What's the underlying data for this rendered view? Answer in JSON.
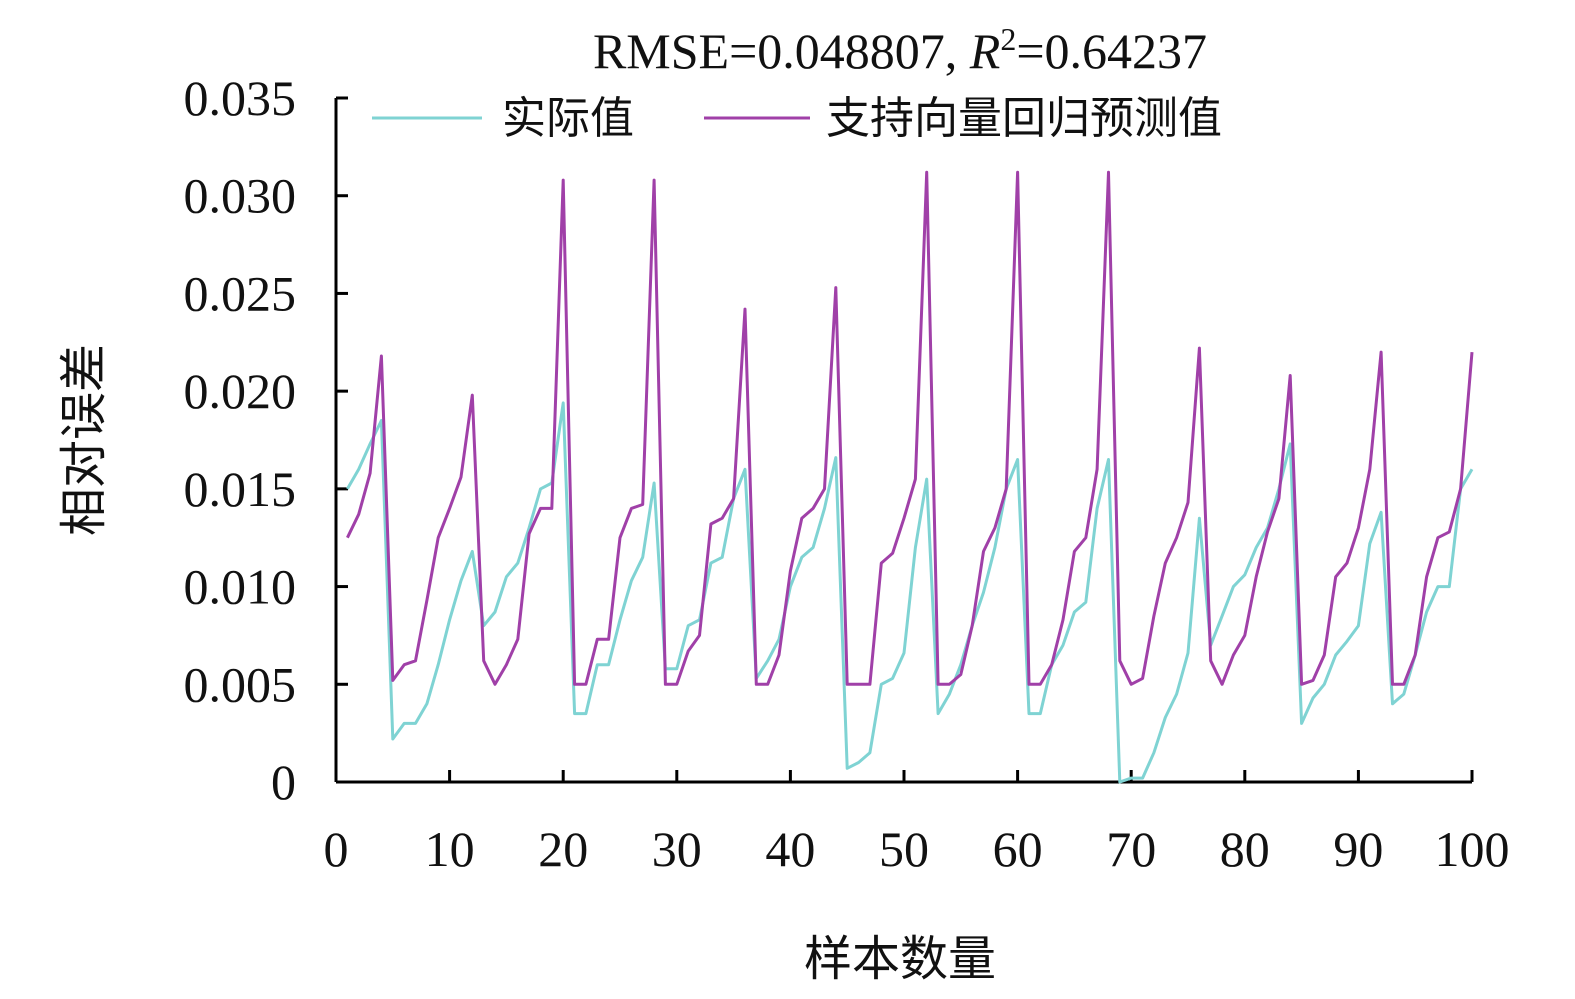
{
  "chart_data": {
    "type": "line",
    "title": "RMSE=0.048807, R²=0.64237",
    "title_parts": {
      "prefix": "RMSE=0.048807, ",
      "r": "R",
      "sup": "2",
      "suffix": "=0.64237"
    },
    "xlabel": "样本数量",
    "ylabel": "相对误差",
    "xlim": [
      0,
      100
    ],
    "ylim": [
      0,
      0.035
    ],
    "x_ticks": [
      0,
      10,
      20,
      30,
      40,
      50,
      60,
      70,
      80,
      90,
      100
    ],
    "x_tick_labels": [
      "0",
      "10",
      "20",
      "30",
      "40",
      "50",
      "60",
      "70",
      "80",
      "90",
      "100"
    ],
    "y_ticks": [
      0,
      0.005,
      0.01,
      0.015,
      0.02,
      0.025,
      0.03,
      0.035
    ],
    "y_tick_labels": [
      "0",
      "0.005",
      "0.010",
      "0.015",
      "0.020",
      "0.025",
      "0.030",
      "0.035"
    ],
    "grid": false,
    "legend_position": "top",
    "series": [
      {
        "name": "实际值",
        "color": "#7fd3d3",
        "values": [
          0.015,
          0.016,
          0.0173,
          0.0185,
          0.0022,
          0.003,
          0.003,
          0.004,
          0.006,
          0.0083,
          0.0103,
          0.0118,
          0.008,
          0.0087,
          0.0105,
          0.0112,
          0.013,
          0.015,
          0.0153,
          0.0194,
          0.0035,
          0.0035,
          0.006,
          0.006,
          0.0083,
          0.0103,
          0.0115,
          0.0153,
          0.0058,
          0.0058,
          0.008,
          0.0083,
          0.0112,
          0.0115,
          0.0145,
          0.016,
          0.0053,
          0.0062,
          0.0073,
          0.01,
          0.0115,
          0.012,
          0.014,
          0.0166,
          0.0007,
          0.001,
          0.0015,
          0.005,
          0.0053,
          0.0066,
          0.012,
          0.0155,
          0.0035,
          0.0045,
          0.006,
          0.008,
          0.0097,
          0.012,
          0.015,
          0.0165,
          0.0035,
          0.0035,
          0.006,
          0.007,
          0.0087,
          0.0092,
          0.014,
          0.0165,
          0.0,
          0.0002,
          0.0002,
          0.0015,
          0.0033,
          0.0045,
          0.0066,
          0.0135,
          0.007,
          0.0085,
          0.01,
          0.0106,
          0.012,
          0.013,
          0.015,
          0.0173,
          0.003,
          0.0043,
          0.005,
          0.0065,
          0.0072,
          0.008,
          0.0122,
          0.0138,
          0.004,
          0.0045,
          0.0065,
          0.0087,
          0.01,
          0.01,
          0.015,
          0.016
        ]
      },
      {
        "name": "支持向量回归预测值",
        "color": "#a040a8",
        "values": [
          0.0125,
          0.0137,
          0.0158,
          0.0218,
          0.0052,
          0.006,
          0.0062,
          0.0093,
          0.0125,
          0.014,
          0.0156,
          0.0198,
          0.0062,
          0.005,
          0.006,
          0.0073,
          0.0127,
          0.014,
          0.014,
          0.0308,
          0.005,
          0.005,
          0.0073,
          0.0073,
          0.0125,
          0.014,
          0.0142,
          0.0308,
          0.005,
          0.005,
          0.0067,
          0.0075,
          0.0132,
          0.0135,
          0.0145,
          0.0242,
          0.005,
          0.005,
          0.0065,
          0.0108,
          0.0135,
          0.014,
          0.015,
          0.0253,
          0.005,
          0.005,
          0.005,
          0.0112,
          0.0117,
          0.0135,
          0.0155,
          0.0312,
          0.005,
          0.005,
          0.0055,
          0.008,
          0.0118,
          0.013,
          0.015,
          0.0312,
          0.005,
          0.005,
          0.006,
          0.0083,
          0.0118,
          0.0125,
          0.016,
          0.0312,
          0.0062,
          0.005,
          0.0053,
          0.0085,
          0.0112,
          0.0125,
          0.0143,
          0.0222,
          0.0062,
          0.005,
          0.0065,
          0.0075,
          0.0105,
          0.0128,
          0.0145,
          0.0208,
          0.005,
          0.0052,
          0.0065,
          0.0105,
          0.0112,
          0.013,
          0.016,
          0.022,
          0.005,
          0.005,
          0.0065,
          0.0105,
          0.0125,
          0.0128,
          0.015,
          0.022
        ]
      }
    ]
  }
}
